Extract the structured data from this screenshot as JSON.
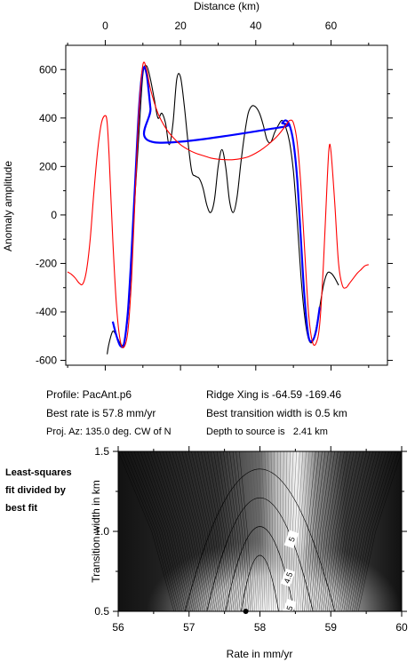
{
  "chart_data": [
    {
      "type": "line",
      "title": "",
      "xlabel_top": "Distance (km)",
      "ylabel": "Anomaly amplitude",
      "x_ticks": [
        0,
        20,
        40,
        60
      ],
      "xlim": [
        -10.5,
        75
      ],
      "y_ticks": [
        -600,
        -400,
        -200,
        0,
        200,
        400,
        600
      ],
      "ylim": [
        -620,
        700
      ],
      "series": [
        {
          "color": "#000000",
          "x": [
            0.5,
            1,
            2,
            3,
            4,
            5,
            6,
            7,
            8,
            9,
            10,
            11,
            12,
            13,
            14,
            15,
            16,
            17,
            18,
            19,
            20,
            21,
            22,
            23,
            24,
            25,
            26,
            27,
            28,
            29,
            30,
            31,
            32,
            33,
            34,
            35,
            36,
            37,
            38,
            39,
            40,
            41,
            42,
            43,
            44,
            45,
            46,
            47,
            48,
            49,
            50,
            51,
            52,
            53,
            54,
            55,
            56,
            57,
            58,
            59,
            60,
            61,
            62
          ],
          "y": [
            -575,
            -530,
            -480,
            -500,
            -530,
            -530,
            -420,
            -200,
            100,
            350,
            580,
            615,
            560,
            480,
            400,
            420,
            380,
            290,
            380,
            560,
            570,
            450,
            300,
            180,
            160,
            150,
            110,
            40,
            10,
            60,
            200,
            270,
            200,
            60,
            10,
            70,
            210,
            330,
            420,
            450,
            445,
            420,
            370,
            310,
            300,
            340,
            370,
            390,
            360,
            300,
            180,
            -20,
            -250,
            -420,
            -510,
            -525,
            -470,
            -380,
            -290,
            -240,
            -240,
            -260,
            -290
          ]
        },
        {
          "color": "#0000ff",
          "x": [
            2,
            3,
            4,
            5,
            6,
            7,
            8,
            9,
            10,
            11,
            12,
            13,
            46,
            47,
            48,
            49,
            50,
            51,
            52,
            53,
            54,
            55,
            56,
            57
          ],
          "y": [
            -440,
            -500,
            -540,
            -530,
            -400,
            -150,
            150,
            450,
            600,
            580,
            440,
            300,
            360,
            380,
            390,
            370,
            300,
            150,
            -100,
            -350,
            -500,
            -520,
            -480,
            -380
          ]
        },
        {
          "color": "#ff0000",
          "x": [
            -10,
            -9,
            -8,
            -7,
            -6,
            -5,
            -4,
            -3,
            -2,
            -1,
            0,
            0.5,
            1,
            2,
            3,
            4,
            5,
            6,
            7,
            8,
            9,
            10,
            11,
            12,
            14,
            16,
            18,
            20,
            22,
            24,
            26,
            28,
            30,
            32,
            34,
            36,
            38,
            40,
            42,
            44,
            46,
            48,
            49,
            50,
            51,
            52,
            53,
            54,
            55,
            56,
            57,
            58,
            59,
            59.5,
            60,
            61,
            62,
            63,
            64,
            65,
            66,
            67,
            68,
            69,
            70
          ],
          "y": [
            -235,
            -245,
            -260,
            -280,
            -285,
            -230,
            -100,
            100,
            270,
            380,
            410,
            380,
            250,
            -100,
            -380,
            -520,
            -545,
            -480,
            -260,
            100,
            440,
            620,
            600,
            520,
            420,
            360,
            320,
            290,
            270,
            255,
            245,
            235,
            230,
            228,
            228,
            232,
            240,
            255,
            275,
            300,
            330,
            370,
            390,
            380,
            300,
            120,
            -150,
            -400,
            -520,
            -530,
            -450,
            -200,
            150,
            280,
            260,
            50,
            -200,
            -290,
            -300,
            -280,
            -260,
            -240,
            -225,
            -210,
            -205
          ]
        }
      ]
    },
    {
      "type": "heatmap",
      "title": "",
      "xlabel": "Rate in mm/yr",
      "ylabel": "Transition width in km",
      "x_ticks": [
        56,
        57,
        58,
        59,
        60
      ],
      "xlim": [
        56,
        60
      ],
      "y_ticks": [
        0.5,
        1.0,
        1.5
      ],
      "y_tick_labels": [
        "0.5",
        "1.0",
        "1.5"
      ],
      "ylim": [
        0.5,
        1.5
      ],
      "best_fit_point": {
        "x": 57.8,
        "y": 0.5
      },
      "contour_labels": [
        {
          "text": "5",
          "x": 58.45,
          "y": 0.95
        },
        {
          "text": "4.5",
          "x": 58.4,
          "y": 0.71
        },
        {
          "text": "5",
          "x": 58.42,
          "y": 0.52
        }
      ]
    }
  ],
  "info": {
    "profile": "Profile: PacAnt.p6",
    "rate": "Best rate is 57.8 mm/yr",
    "azimuth": "Proj. Az: 135.0 deg. CW of N",
    "ridge": "Ridge Xing is -64.59 -169.46",
    "width": "Best transition width is 0.5 km",
    "depth": "Depth to source is   2.41 km"
  },
  "side_label": [
    "Least-squares",
    "fit divided by",
    "best fit"
  ]
}
